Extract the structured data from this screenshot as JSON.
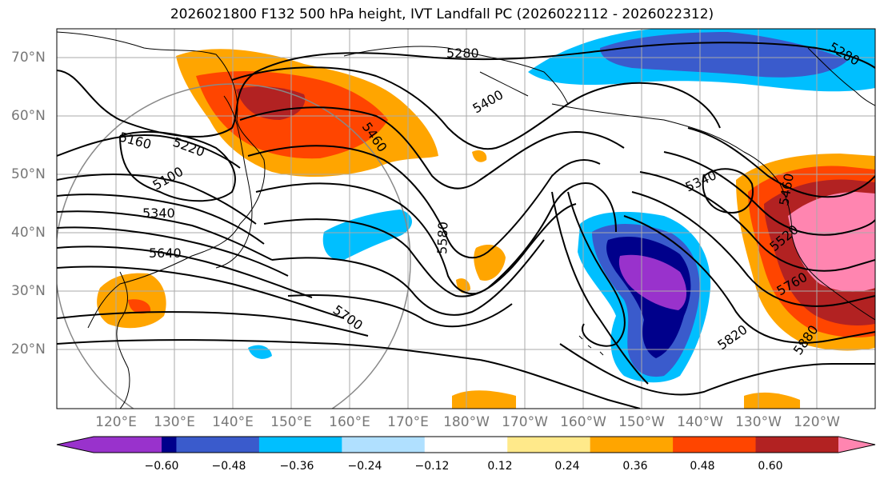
{
  "title": "2026021800 F132 500 hPa height, IVT Landfall PC (2026022112 - 2026022312)",
  "lat_labels": [
    "70°N",
    "60°N",
    "50°N",
    "40°N",
    "30°N",
    "20°N"
  ],
  "lon_labels": [
    "120°E",
    "130°E",
    "140°E",
    "150°E",
    "160°E",
    "170°E",
    "180°W",
    "170°W",
    "160°W",
    "150°W",
    "140°W",
    "130°W",
    "120°W"
  ],
  "contour_labels": [
    "5280",
    "5400",
    "5460",
    "5160",
    "5220",
    "5100",
    "5340",
    "5640",
    "5580",
    "5700",
    "5340",
    "5520",
    "5760",
    "5820",
    "5880",
    "5280",
    "5460"
  ],
  "colorbar": {
    "ticks": [
      "−0.60",
      "−0.48",
      "−0.36",
      "−0.24",
      "−0.12",
      "0.12",
      "0.24",
      "0.36",
      "0.48",
      "0.60"
    ],
    "colors": [
      "#9932cc",
      "#00008b",
      "#3a5bcc",
      "#00bfff",
      "#b0e0ff",
      "#ffffff",
      "#ffe98a",
      "#ffa500",
      "#ff4500",
      "#b22222",
      "#ff85b0"
    ]
  },
  "colors": {
    "neg_strong": "#9932cc",
    "neg_dark": "#00008b",
    "neg_mid": "#3a5bcc",
    "neg_light": "#00bfff",
    "neg_faint": "#b0e0ff",
    "pos_faint": "#ffe98a",
    "pos_light": "#ffa500",
    "pos_mid": "#ff4500",
    "pos_dark": "#b22222",
    "pos_strong": "#ff85b0"
  }
}
